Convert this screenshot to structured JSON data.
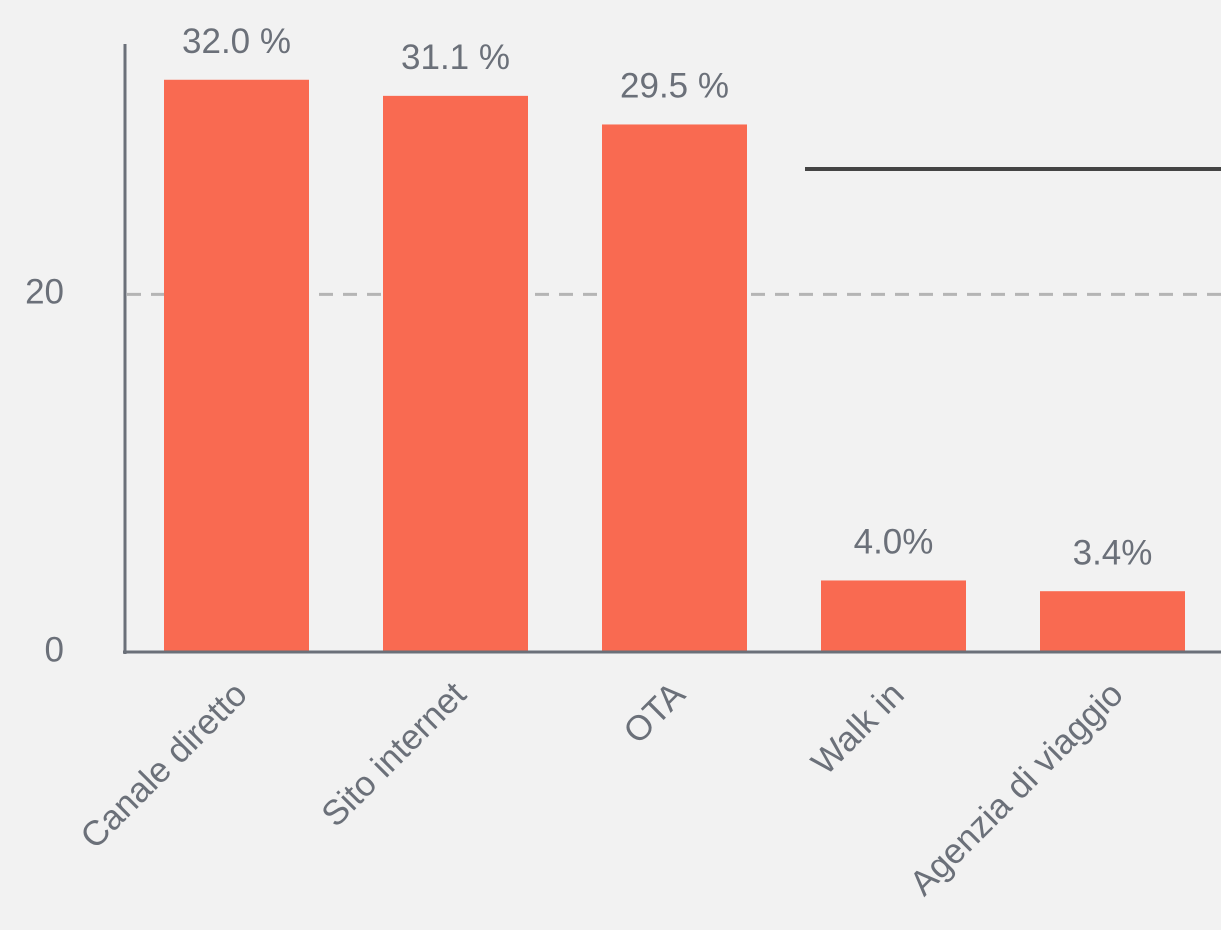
{
  "chart_data": {
    "type": "bar",
    "categories": [
      "Canale diretto",
      "Sito internet",
      "OTA",
      "Walk in",
      "Agenzia di viaggio"
    ],
    "values": [
      32.0,
      31.1,
      29.5,
      4.0,
      3.4
    ],
    "value_labels": [
      "32.0 %",
      "31.1 %",
      "29.5 %",
      "4.0%",
      "3.4%"
    ],
    "color": "#f96a51",
    "ylim": [
      0,
      34
    ],
    "yticks": [
      0,
      20
    ],
    "grid": true
  }
}
